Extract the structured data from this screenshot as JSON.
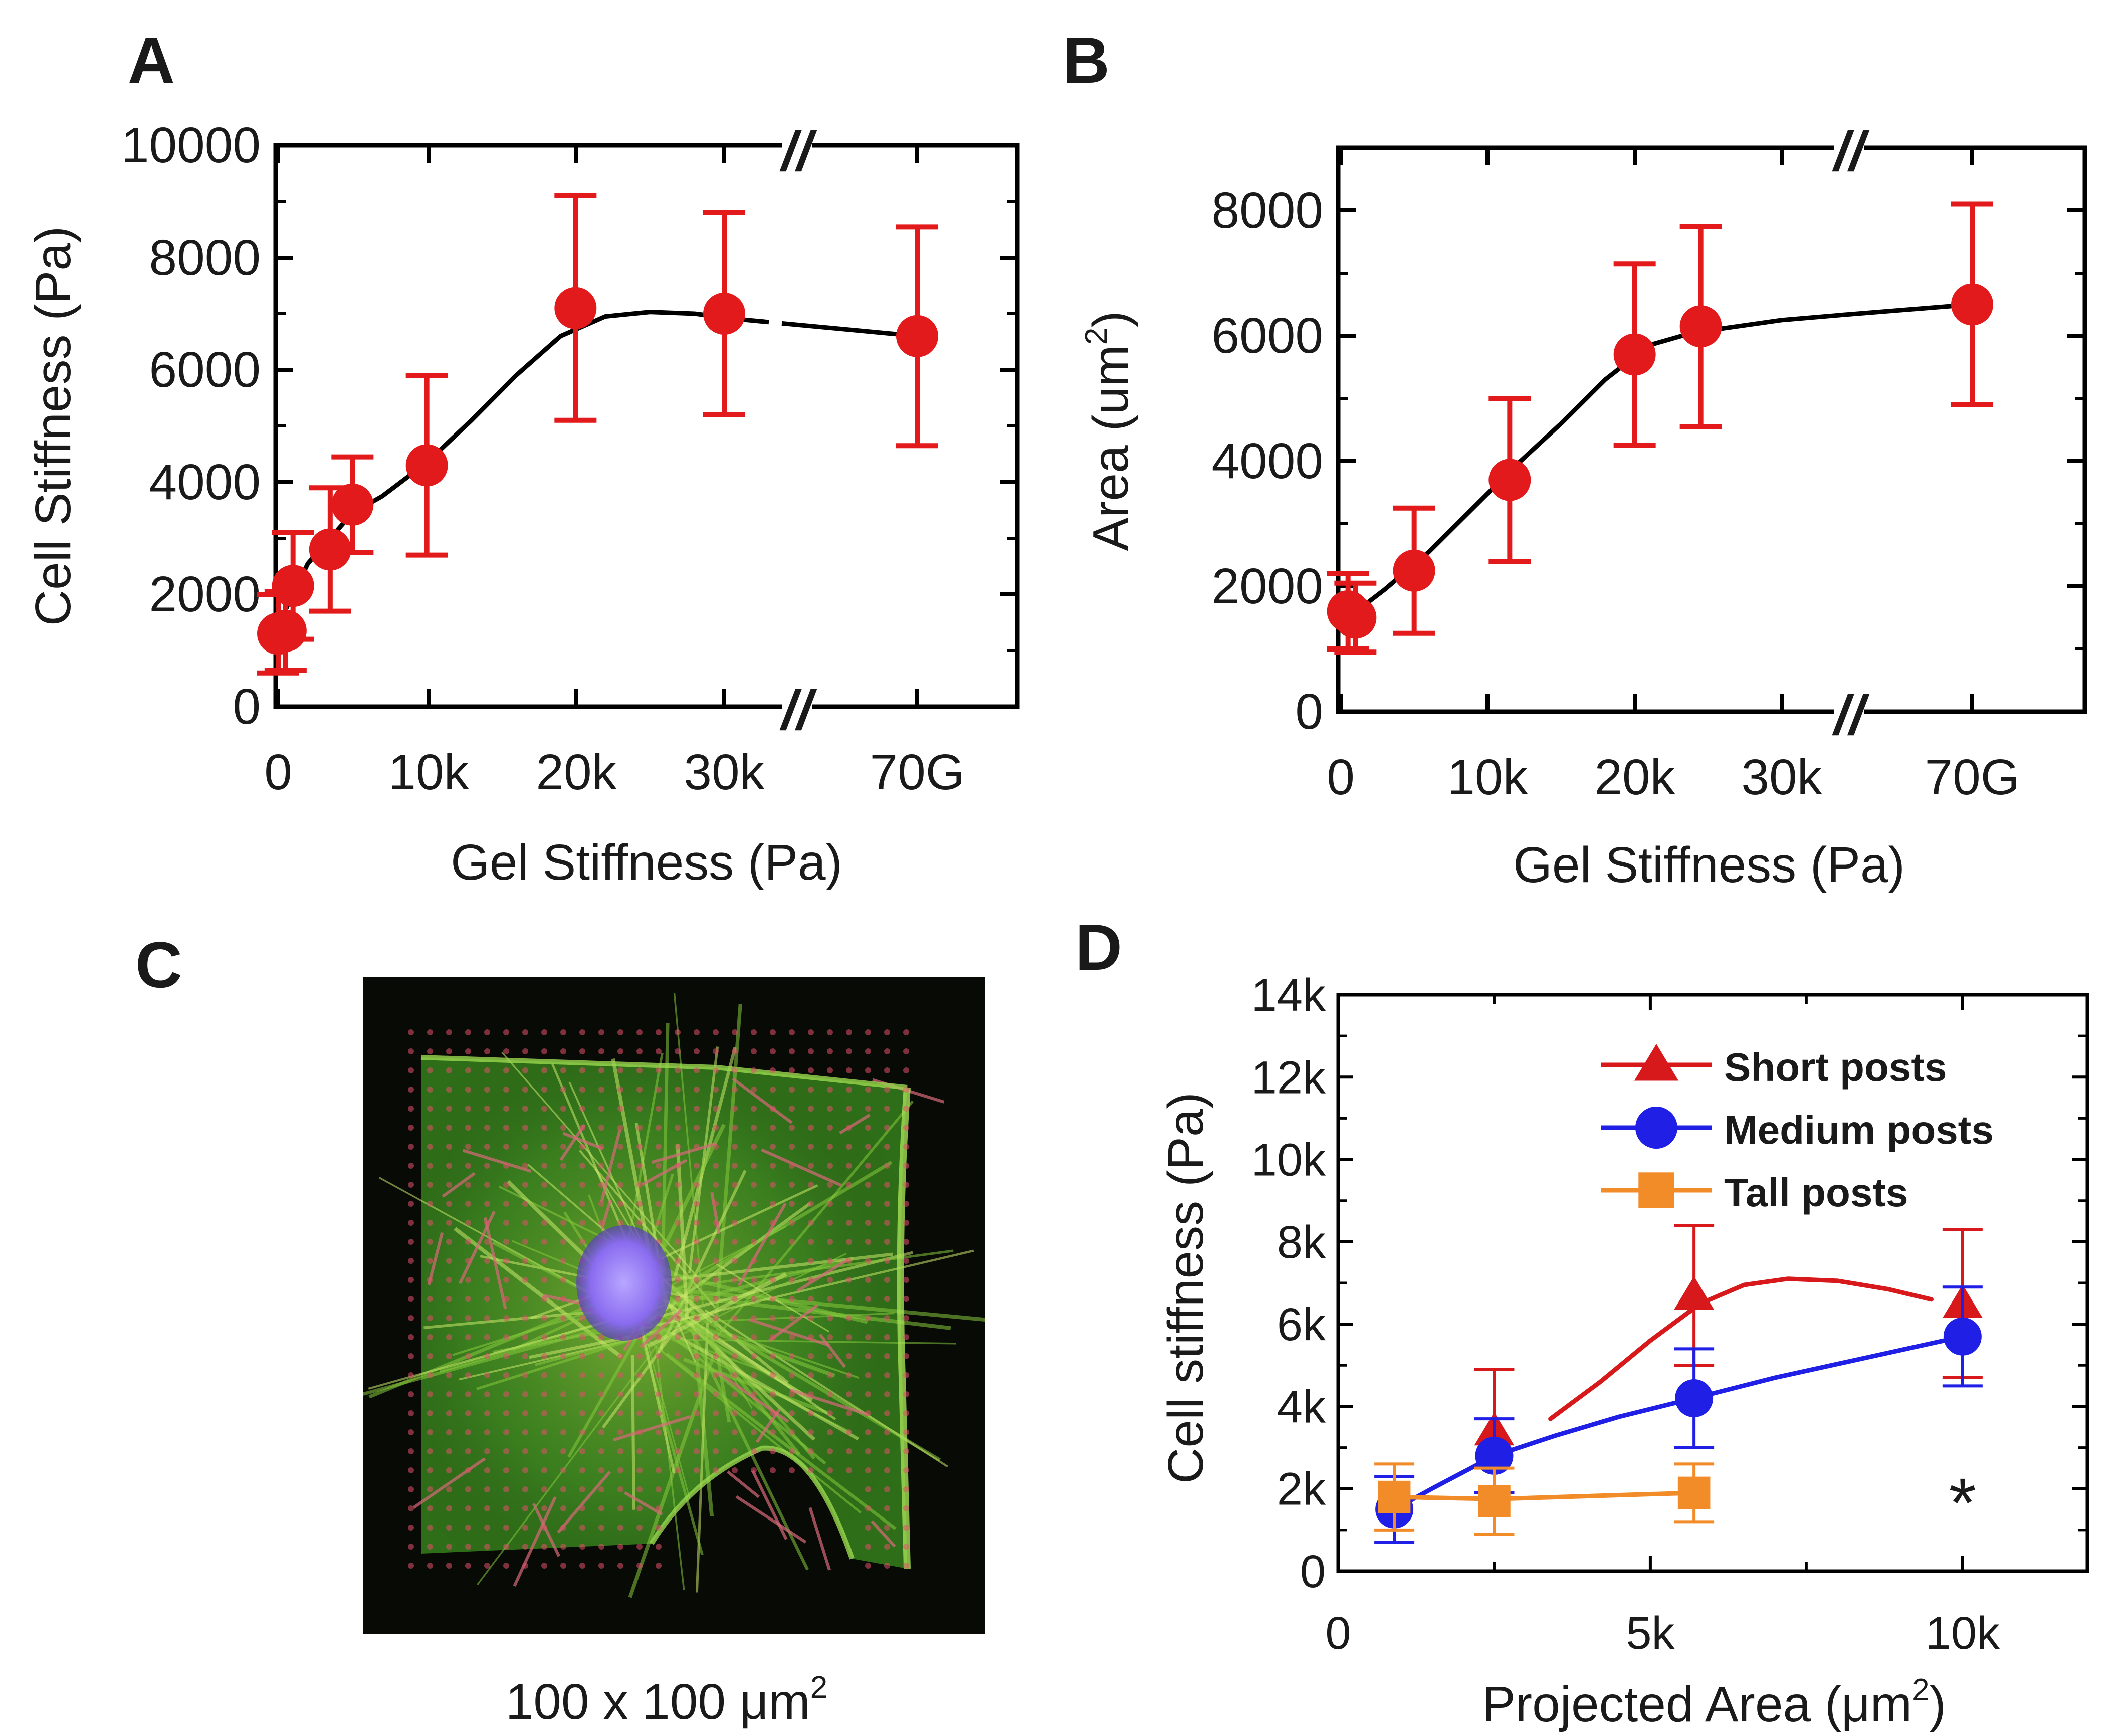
{
  "chart_data": [
    {
      "panel": "A",
      "type": "scatter",
      "xlabel": "Gel Stiffness (Pa)",
      "ylabel": "Cell Stiffness (Pa)",
      "x_tick_labels": [
        "0",
        "10k",
        "20k",
        "30k",
        "70G"
      ],
      "y_tick_labels": [
        "0",
        "2000",
        "4000",
        "6000",
        "8000",
        "10000"
      ],
      "ylim": [
        0,
        10000
      ],
      "x_axis_break": "between 30k and 70G",
      "series": [
        {
          "name": "Cell stiffness",
          "color": "#e31a1c",
          "x": [
            0,
            500,
            1000,
            3500,
            5000,
            10000,
            20000,
            30000,
            "70G"
          ],
          "y": [
            1300,
            1350,
            2150,
            2800,
            3600,
            4300,
            7100,
            7000,
            6600
          ],
          "err": [
            700,
            700,
            950,
            1100,
            850,
            1600,
            2000,
            1800,
            1950
          ]
        }
      ],
      "fit_line": {
        "color": "#000000",
        "x": [
          0,
          2000,
          5000,
          7000,
          10000,
          13000,
          16000,
          19000,
          22000,
          25000,
          28000,
          31000,
          33000,
          "70G"
        ],
        "y": [
          1450,
          2550,
          3450,
          3750,
          4350,
          5100,
          5900,
          6600,
          6950,
          7030,
          7000,
          6900,
          6850,
          6600
        ]
      }
    },
    {
      "panel": "B",
      "type": "scatter",
      "xlabel": "Gel Stiffness (Pa)",
      "ylabel": "Area (um",
      "ylabel_sup": "2",
      "ylabel_end": ")",
      "x_tick_labels": [
        "0",
        "10k",
        "20k",
        "30k",
        "70G"
      ],
      "y_tick_labels": [
        "0",
        "2000",
        "4000",
        "6000",
        "8000"
      ],
      "ylim": [
        0,
        9000
      ],
      "x_axis_break": "between 30k and 70G",
      "series": [
        {
          "name": "Area",
          "color": "#e31a1c",
          "x": [
            500,
            1000,
            5000,
            11500,
            20000,
            24500,
            "70G"
          ],
          "y": [
            1600,
            1500,
            2250,
            3700,
            5700,
            6150,
            6500
          ],
          "err": [
            600,
            550,
            1000,
            1300,
            1450,
            1600,
            1600
          ]
        }
      ],
      "fit_line": {
        "color": "#000000",
        "x": [
          500,
          3000,
          6000,
          9000,
          12000,
          15000,
          18000,
          21000,
          24000,
          27000,
          30000,
          34000,
          "70G"
        ],
        "y": [
          1500,
          1950,
          2550,
          3250,
          3950,
          4600,
          5300,
          5850,
          6050,
          6150,
          6250,
          6330,
          6500
        ]
      }
    },
    {
      "panel": "D",
      "type": "line",
      "xlabel": "Projected Area (μm",
      "xlabel_sup": "2",
      "xlabel_end": ")",
      "ylabel": "Cell stiffness (Pa)",
      "x_tick_labels": [
        "0",
        "5k",
        "10k"
      ],
      "y_tick_labels": [
        "0",
        "2k",
        "4k",
        "6k",
        "8k",
        "10k",
        "12k",
        "14k"
      ],
      "xlim": [
        0,
        12000
      ],
      "ylim": [
        0,
        14000
      ],
      "legend_position": "top-right",
      "series": [
        {
          "name": "Short posts",
          "marker": "triangle",
          "color": "#d7191c",
          "x": [
            2500,
            5700,
            10000
          ],
          "y": [
            3400,
            6700,
            6500
          ],
          "err": [
            1500,
            1700,
            1800
          ],
          "line_x": [
            3400,
            4200,
            5000,
            5800,
            6500,
            7200,
            8000,
            8800,
            9500
          ],
          "line_y": [
            3700,
            4600,
            5600,
            6500,
            6950,
            7100,
            7050,
            6850,
            6600
          ]
        },
        {
          "name": "Medium posts",
          "marker": "circle",
          "color": "#1f1fe6",
          "x": [
            900,
            2500,
            5700,
            10000
          ],
          "y": [
            1500,
            2800,
            4200,
            5700
          ],
          "err": [
            800,
            900,
            1200,
            1200
          ],
          "line_x": [
            900,
            1500,
            2500,
            3500,
            4500,
            5700,
            7000,
            8500,
            10000
          ],
          "line_y": [
            1500,
            2000,
            2800,
            3300,
            3750,
            4200,
            4700,
            5200,
            5700
          ]
        },
        {
          "name": "Tall posts",
          "marker": "square",
          "color": "#f28c28",
          "x": [
            900,
            2500,
            5700
          ],
          "y": [
            1800,
            1700,
            1900
          ],
          "err": [
            800,
            800,
            700
          ],
          "line_x": [
            900,
            2500,
            5700
          ],
          "line_y": [
            1800,
            1750,
            1900
          ]
        }
      ],
      "annotations": [
        {
          "text": "*",
          "x": 10000,
          "y": 1800,
          "color": "#f28c28"
        }
      ]
    }
  ],
  "panel_labels": {
    "a": "A",
    "b": "B",
    "c": "C",
    "d": "D"
  },
  "image_caption": {
    "main": "100 x 100 μm",
    "sup": "2"
  },
  "break_mark": "//"
}
